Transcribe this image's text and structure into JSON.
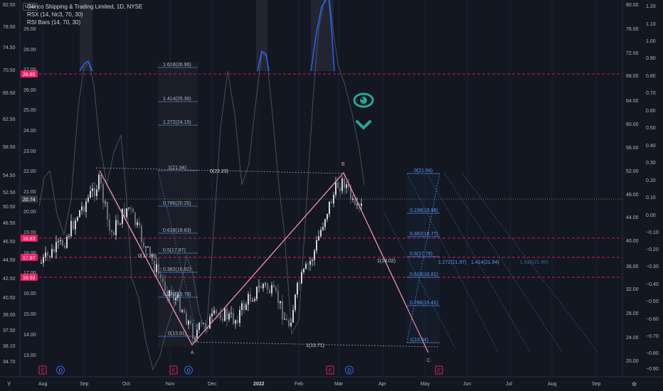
{
  "legend": {
    "currency": "USD",
    "symbol": "Genco Shipping & Trading Limited, 1D, NYSE",
    "rsx": "RSX (14, hlc3, 70, 30)",
    "rsi_bars": "RSI Bars (14, 70, 30)"
  },
  "colors": {
    "background": "#131722",
    "pink": "#e91e63",
    "zigzag": "#f48fb1",
    "fib": "#5b9cf6",
    "oscillator": "#2962ff",
    "teal": "#26a69a",
    "grid": "#1e222d"
  },
  "icons": {
    "watch": "eye-icon",
    "down": "chevron-down-icon"
  },
  "chart_data": {
    "type": "candlestick",
    "left_axis": {
      "ticks": [
        "82.50",
        "78.50",
        "74.50",
        "70.50",
        "66.50",
        "62.50",
        "58.50",
        "54.50",
        "52.50",
        "50.50",
        "48.50",
        "46.50",
        "44.50",
        "42.50",
        "40.50",
        "39.00",
        "37.50",
        "36.10",
        "34.70"
      ],
      "badges": [
        "26.85",
        "20.74",
        "18.83",
        "17.87",
        "16.93"
      ]
    },
    "price_axis": {
      "ticks": [
        "29.00",
        "28.00",
        "27.00",
        "26.00",
        "25.00",
        "24.00",
        "23.00",
        "22.00",
        "21.00",
        "20.00",
        "19.00",
        "18.00",
        "17.00",
        "16.00",
        "15.00",
        "14.00",
        "13.00"
      ],
      "range": [
        12.4,
        30.2
      ]
    },
    "right_axis_1": {
      "ticks": [
        "80.00",
        "76.00",
        "72.00",
        "68.00",
        "64.00",
        "60.00",
        "56.00",
        "52.00",
        "48.00",
        "44.00",
        "40.00",
        "36.00",
        "32.00",
        "28.00",
        "24.00",
        "20.00"
      ]
    },
    "right_axis_2": {
      "ticks": [
        "1.20",
        "1.10",
        "1.00",
        "0.90",
        "0.80",
        "0.70",
        "0.60",
        "0.50",
        "0.40",
        "0.30",
        "0.20",
        "0.10",
        "0.00",
        "−0.10",
        "−0.20",
        "−0.30",
        "−0.40",
        "−0.50",
        "−0.60",
        "−0.70",
        "−0.80",
        "−0.90"
      ]
    },
    "x_axis": {
      "labels": [
        "Aug",
        "Sep",
        "Oct",
        "Nov",
        "Dec",
        "2022",
        "Feb",
        "Mar",
        "Apr",
        "May",
        "Jun",
        "Jul",
        "Aug",
        "Sep"
      ]
    },
    "last_price": 20.74,
    "horizontal_levels": [
      26.85,
      18.83,
      17.87,
      16.93
    ],
    "pivots": [
      {
        "label": "A",
        "price": 13.71
      },
      {
        "label": "B",
        "price": 21.94
      },
      {
        "label": "C",
        "price": 13.2
      }
    ],
    "fib_extension": [
      {
        "label": "1.618(26.96)",
        "price": 26.96
      },
      {
        "label": "1.414(25.30)",
        "price": 25.3
      },
      {
        "label": "1.272(24.15)",
        "price": 24.15
      },
      {
        "label": "1(21.94)",
        "price": 21.94
      },
      {
        "label": "0.786(20.20)",
        "price": 20.2
      },
      {
        "label": "0.618(18.83)",
        "price": 18.83
      },
      {
        "label": "0.5(17.87)",
        "price": 17.87
      },
      {
        "label": "0.382(16.92)",
        "price": 16.92
      },
      {
        "label": "0.236(15.78)",
        "price": 15.78
      },
      {
        "label": "0(13.81)",
        "price": 13.81
      }
    ],
    "fib_retrace": [
      {
        "label": "0(21.94)",
        "price": 21.94
      },
      {
        "label": "0.236(19.98)",
        "price": 19.98
      },
      {
        "label": "0.382(18.77)",
        "price": 18.77
      },
      {
        "label": "0.5(17.79)",
        "price": 17.79
      },
      {
        "label": "0.618(16.81)",
        "price": 16.81
      },
      {
        "label": "0.786(15.41)",
        "price": 15.41
      },
      {
        "label": "1(13.64)",
        "price": 13.64
      }
    ],
    "channel_labels": {
      "top": "0(22.23)",
      "mid": "0(17.88)",
      "bottom": "1(13.71)",
      "mid2": "1(18.02)"
    },
    "projection_labels": [
      "1.272(21.97)",
      "1.414(21.94)",
      "1.618(21.90)"
    ],
    "event_markers": [
      "E",
      "D",
      "E",
      "D",
      "E",
      "D",
      "E"
    ]
  }
}
